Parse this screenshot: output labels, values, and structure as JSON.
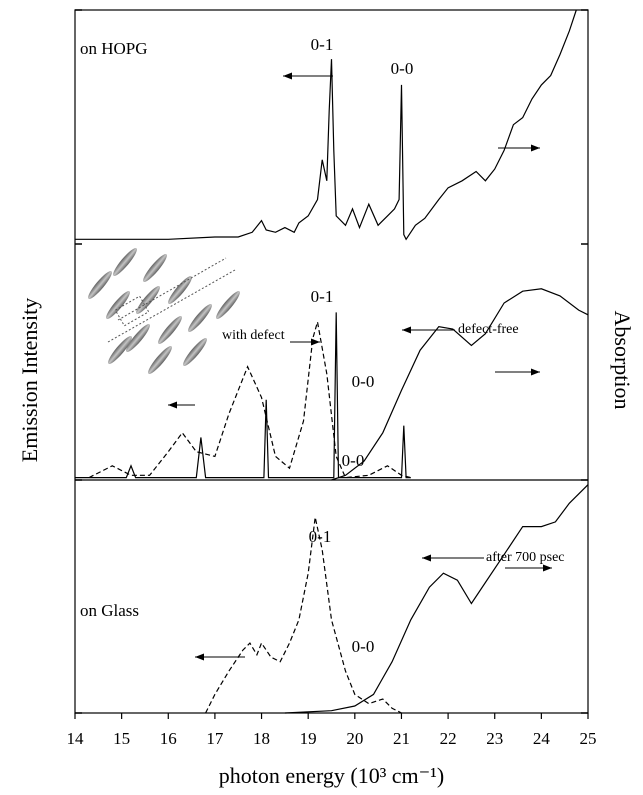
{
  "figure": {
    "ylabel": "Emission Intensity",
    "y2label": "Absorption"
  },
  "chart_data": [
    {
      "type": "line",
      "xlim": [
        14,
        25
      ],
      "ylim": [
        0,
        1
      ],
      "annotations": [
        "on HOPG",
        "0-1",
        "0-0"
      ],
      "series": [
        {
          "color": "#000000",
          "dash": false,
          "x": [
            14,
            15,
            16,
            17,
            17.5,
            17.8,
            18.0,
            18.1,
            18.3,
            18.5,
            18.7,
            18.8,
            19.0,
            19.2,
            19.3,
            19.4,
            19.45,
            19.5,
            19.55,
            19.6,
            19.8,
            19.95,
            20.1,
            20.3,
            20.5,
            20.7,
            20.85,
            20.95,
            21.0,
            21.05,
            21.1,
            21.3,
            21.5,
            21.8,
            22.0,
            22.3,
            22.6,
            22.8,
            23.0,
            23.2,
            23.4,
            23.6,
            23.8,
            24.0,
            24.2,
            24.4,
            24.6,
            24.75
          ],
          "values": [
            0.02,
            0.02,
            0.02,
            0.03,
            0.03,
            0.05,
            0.1,
            0.06,
            0.05,
            0.07,
            0.05,
            0.09,
            0.12,
            0.19,
            0.36,
            0.27,
            0.57,
            0.79,
            0.4,
            0.12,
            0.08,
            0.15,
            0.07,
            0.17,
            0.08,
            0.12,
            0.15,
            0.19,
            0.68,
            0.04,
            0.02,
            0.08,
            0.11,
            0.19,
            0.24,
            0.27,
            0.31,
            0.27,
            0.32,
            0.4,
            0.51,
            0.54,
            0.62,
            0.68,
            0.72,
            0.81,
            0.91,
            1.0
          ]
        }
      ]
    },
    {
      "type": "line",
      "xlim": [
        14,
        25
      ],
      "ylim": [
        0,
        1
      ],
      "annotations": [
        "0-1",
        "with defect",
        "defect-free",
        "0-0",
        "0-0"
      ],
      "series": [
        {
          "color": "#000000",
          "dash": false,
          "x": [
            14,
            15.1,
            15.2,
            15.3,
            16.6,
            16.7,
            16.8,
            18.05,
            18.1,
            18.15,
            19.55,
            19.6,
            19.65,
            21.0,
            21.05,
            21.1,
            21.2
          ],
          "values": [
            0.01,
            0.01,
            0.06,
            0.01,
            0.01,
            0.18,
            0.01,
            0.01,
            0.34,
            0.01,
            0.01,
            0.71,
            0.01,
            0.01,
            0.23,
            0.01,
            0.01
          ]
        },
        {
          "color": "#000000",
          "dash": true,
          "x": [
            14.3,
            14.8,
            15.2,
            15.6,
            16.0,
            16.3,
            16.6,
            17.0,
            17.3,
            17.7,
            18.0,
            18.3,
            18.6,
            18.9,
            19.1,
            19.2,
            19.4,
            19.6,
            19.8,
            20.3,
            20.7,
            21.0,
            21.2
          ],
          "values": [
            0.01,
            0.06,
            0.02,
            0.02,
            0.12,
            0.2,
            0.12,
            0.1,
            0.28,
            0.48,
            0.35,
            0.1,
            0.05,
            0.25,
            0.6,
            0.67,
            0.45,
            0.1,
            0.01,
            0.02,
            0.06,
            0.02,
            0.01
          ]
        },
        {
          "color": "#000000",
          "dash": false,
          "x": [
            19.5,
            19.8,
            20.2,
            20.6,
            21.0,
            21.4,
            21.8,
            22.1,
            22.5,
            22.8,
            23.2,
            23.6,
            24.0,
            24.4,
            24.8,
            25
          ],
          "values": [
            0.0,
            0.02,
            0.08,
            0.2,
            0.38,
            0.55,
            0.65,
            0.64,
            0.57,
            0.62,
            0.75,
            0.8,
            0.81,
            0.78,
            0.72,
            0.7
          ]
        }
      ]
    },
    {
      "type": "line",
      "xlim": [
        14,
        25
      ],
      "ylim": [
        0,
        1
      ],
      "xticks": [
        14,
        15,
        16,
        17,
        18,
        19,
        20,
        21,
        22,
        23,
        24,
        25
      ],
      "xlabel": "photon energy (10³ cm⁻¹)",
      "annotations": [
        "0-1",
        "after 700 psec",
        "on Glass",
        "0-0"
      ],
      "series": [
        {
          "color": "#000000",
          "dash": true,
          "x": [
            16.8,
            17.0,
            17.3,
            17.6,
            17.75,
            17.9,
            18.0,
            18.2,
            18.4,
            18.6,
            18.8,
            19.0,
            19.15,
            19.3,
            19.5,
            19.8,
            20.0,
            20.3,
            20.6,
            20.8,
            21.0
          ],
          "values": [
            0.0,
            0.08,
            0.18,
            0.27,
            0.3,
            0.25,
            0.3,
            0.24,
            0.22,
            0.3,
            0.4,
            0.6,
            0.84,
            0.7,
            0.4,
            0.18,
            0.08,
            0.04,
            0.06,
            0.02,
            0.0
          ]
        },
        {
          "color": "#000000",
          "dash": false,
          "x": [
            18.5,
            19.5,
            20.0,
            20.4,
            20.8,
            21.2,
            21.6,
            21.9,
            22.2,
            22.5,
            22.8,
            23.2,
            23.6,
            24.0,
            24.3,
            24.6,
            25
          ],
          "values": [
            0.0,
            0.01,
            0.03,
            0.08,
            0.22,
            0.4,
            0.54,
            0.6,
            0.57,
            0.47,
            0.56,
            0.68,
            0.8,
            0.8,
            0.82,
            0.9,
            0.98
          ]
        }
      ]
    }
  ]
}
